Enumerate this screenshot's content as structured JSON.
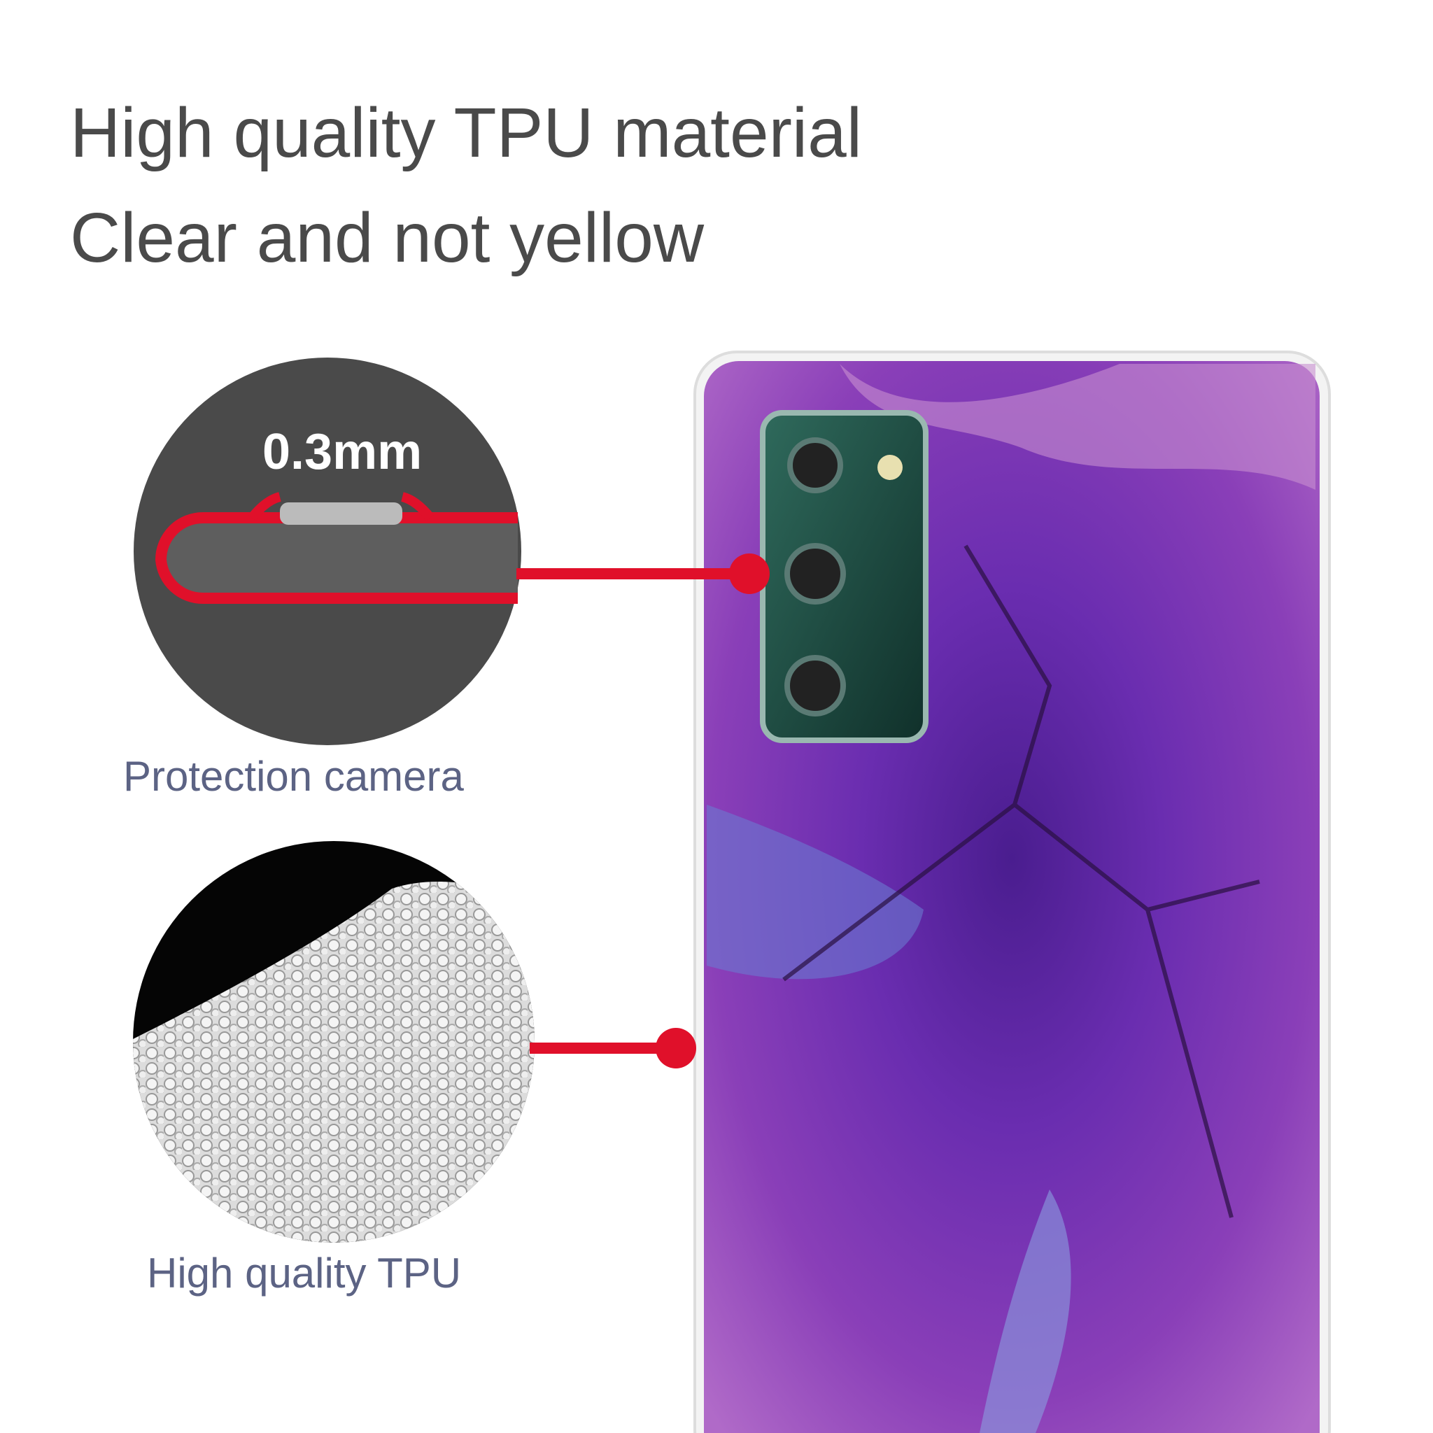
{
  "headline": {
    "line1": "High quality TPU material",
    "line2": "Clear and not yellow"
  },
  "callouts": [
    {
      "thickness": "0.3mm",
      "label": "Protection camera"
    },
    {
      "label": "High quality TPU"
    }
  ],
  "colors": {
    "accent_red": "#e0102a",
    "title_text": "#4a4a4a",
    "label_text": "#5c6384",
    "case_purple": "#6a2aa8",
    "camera_green": "#1e4a40"
  }
}
